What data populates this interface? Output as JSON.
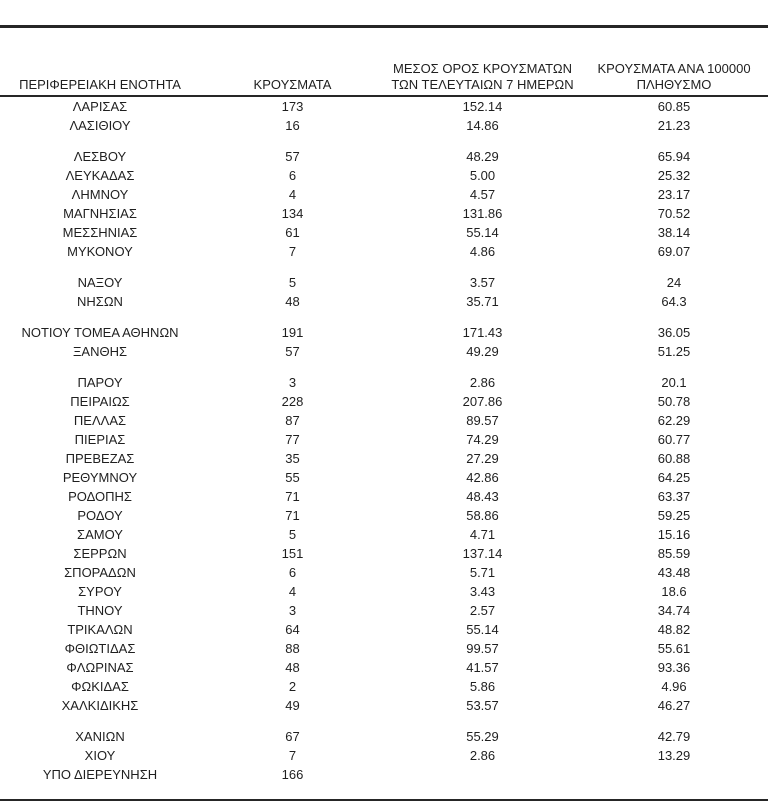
{
  "page": {
    "background": "#ffffff",
    "text_color": "#1f1f1f",
    "rule_color": "#262626"
  },
  "table": {
    "header": {
      "col1": "ΠΕΡΙΦΕΡΕΙΑΚΗ ΕΝΟΤΗΤΑ",
      "col2": "ΚΡΟΥΣΜΑΤΑ",
      "col3_line1": "ΜΕΣΟΣ ΟΡΟΣ ΚΡΟΥΣΜΑΤΩΝ",
      "col3_line2": "ΤΩΝ ΤΕΛΕΥΤΑΙΩΝ 7 ΗΜΕΡΩΝ",
      "col4_line1": "ΚΡΟΥΣΜΑΤΑ ΑΝΑ 100000",
      "col4_line2": "ΠΛΗΘΥΣΜΟ"
    },
    "rows": [
      {
        "name": "ΛΑΡΙΣΑΣ",
        "cases": "173",
        "avg7": "152.14",
        "per100k": "60.85"
      },
      {
        "name": "ΛΑΣΙΘΙΟΥ",
        "cases": "16",
        "avg7": "14.86",
        "per100k": "21.23"
      },
      {
        "spacer": true
      },
      {
        "name": "ΛΕΣΒΟΥ",
        "cases": "57",
        "avg7": "48.29",
        "per100k": "65.94"
      },
      {
        "name": "ΛΕΥΚΑΔΑΣ",
        "cases": "6",
        "avg7": "5.00",
        "per100k": "25.32"
      },
      {
        "name": "ΛΗΜΝΟΥ",
        "cases": "4",
        "avg7": "4.57",
        "per100k": "23.17"
      },
      {
        "name": "ΜΑΓΝΗΣΙΑΣ",
        "cases": "134",
        "avg7": "131.86",
        "per100k": "70.52"
      },
      {
        "name": "ΜΕΣΣΗΝΙΑΣ",
        "cases": "61",
        "avg7": "55.14",
        "per100k": "38.14"
      },
      {
        "name": "ΜΥΚΟΝΟΥ",
        "cases": "7",
        "avg7": "4.86",
        "per100k": "69.07"
      },
      {
        "spacer": true
      },
      {
        "name": "ΝΑΞΟΥ",
        "cases": "5",
        "avg7": "3.57",
        "per100k": "24"
      },
      {
        "name": "ΝΗΣΩΝ",
        "cases": "48",
        "avg7": "35.71",
        "per100k": "64.3"
      },
      {
        "spacer": true
      },
      {
        "name": "ΝΟΤΙΟΥ ΤΟΜΕΑ ΑΘΗΝΩΝ",
        "cases": "191",
        "avg7": "171.43",
        "per100k": "36.05"
      },
      {
        "name": "ΞΑΝΘΗΣ",
        "cases": "57",
        "avg7": "49.29",
        "per100k": "51.25"
      },
      {
        "spacer": true
      },
      {
        "name": "ΠΑΡΟΥ",
        "cases": "3",
        "avg7": "2.86",
        "per100k": "20.1"
      },
      {
        "name": "ΠΕΙΡΑΙΩΣ",
        "cases": "228",
        "avg7": "207.86",
        "per100k": "50.78"
      },
      {
        "name": "ΠΕΛΛΑΣ",
        "cases": "87",
        "avg7": "89.57",
        "per100k": "62.29"
      },
      {
        "name": "ΠΙΕΡΙΑΣ",
        "cases": "77",
        "avg7": "74.29",
        "per100k": "60.77"
      },
      {
        "name": "ΠΡΕΒΕΖΑΣ",
        "cases": "35",
        "avg7": "27.29",
        "per100k": "60.88"
      },
      {
        "name": "ΡΕΘΥΜΝΟΥ",
        "cases": "55",
        "avg7": "42.86",
        "per100k": "64.25"
      },
      {
        "name": "ΡΟΔΟΠΗΣ",
        "cases": "71",
        "avg7": "48.43",
        "per100k": "63.37"
      },
      {
        "name": "ΡΟΔΟΥ",
        "cases": "71",
        "avg7": "58.86",
        "per100k": "59.25"
      },
      {
        "name": "ΣΑΜΟΥ",
        "cases": "5",
        "avg7": "4.71",
        "per100k": "15.16"
      },
      {
        "name": "ΣΕΡΡΩΝ",
        "cases": "151",
        "avg7": "137.14",
        "per100k": "85.59"
      },
      {
        "name": "ΣΠΟΡΑΔΩΝ",
        "cases": "6",
        "avg7": "5.71",
        "per100k": "43.48"
      },
      {
        "name": "ΣΥΡΟΥ",
        "cases": "4",
        "avg7": "3.43",
        "per100k": "18.6"
      },
      {
        "name": "ΤΗΝΟΥ",
        "cases": "3",
        "avg7": "2.57",
        "per100k": "34.74"
      },
      {
        "name": "ΤΡΙΚΑΛΩΝ",
        "cases": "64",
        "avg7": "55.14",
        "per100k": "48.82"
      },
      {
        "name": "ΦΘΙΩΤΙΔΑΣ",
        "cases": "88",
        "avg7": "99.57",
        "per100k": "55.61"
      },
      {
        "name": "ΦΛΩΡΙΝΑΣ",
        "cases": "48",
        "avg7": "41.57",
        "per100k": "93.36"
      },
      {
        "name": "ΦΩΚΙΔΑΣ",
        "cases": "2",
        "avg7": "5.86",
        "per100k": "4.96"
      },
      {
        "name": "ΧΑΛΚΙΔΙΚΗΣ",
        "cases": "49",
        "avg7": "53.57",
        "per100k": "46.27"
      },
      {
        "spacer": true
      },
      {
        "name": "ΧΑΝΙΩΝ",
        "cases": "67",
        "avg7": "55.29",
        "per100k": "42.79"
      },
      {
        "name": "ΧΙΟΥ",
        "cases": "7",
        "avg7": "2.86",
        "per100k": "13.29"
      },
      {
        "name": "ΥΠΟ ΔΙΕΡΕΥΝΗΣΗ",
        "cases": "166",
        "avg7": "",
        "per100k": ""
      }
    ]
  },
  "chart_data": {
    "type": "table",
    "columns": [
      "ΠΕΡΙΦΕΡΕΙΑΚΗ ΕΝΟΤΗΤΑ",
      "ΚΡΟΥΣΜΑΤΑ",
      "ΜΕΣΟΣ ΟΡΟΣ ΚΡΟΥΣΜΑΤΩΝ ΤΩΝ ΤΕΛΕΥΤΑΙΩΝ 7 ΗΜΕΡΩΝ",
      "ΚΡΟΥΣΜΑΤΑ ΑΝΑ 100000 ΠΛΗΘΥΣΜΟ"
    ],
    "rows": [
      [
        "ΛΑΡΙΣΑΣ",
        173,
        152.14,
        60.85
      ],
      [
        "ΛΑΣΙΘΙΟΥ",
        16,
        14.86,
        21.23
      ],
      [
        "ΛΕΣΒΟΥ",
        57,
        48.29,
        65.94
      ],
      [
        "ΛΕΥΚΑΔΑΣ",
        6,
        5.0,
        25.32
      ],
      [
        "ΛΗΜΝΟΥ",
        4,
        4.57,
        23.17
      ],
      [
        "ΜΑΓΝΗΣΙΑΣ",
        134,
        131.86,
        70.52
      ],
      [
        "ΜΕΣΣΗΝΙΑΣ",
        61,
        55.14,
        38.14
      ],
      [
        "ΜΥΚΟΝΟΥ",
        7,
        4.86,
        69.07
      ],
      [
        "ΝΑΞΟΥ",
        5,
        3.57,
        24
      ],
      [
        "ΝΗΣΩΝ",
        48,
        35.71,
        64.3
      ],
      [
        "ΝΟΤΙΟΥ ΤΟΜΕΑ ΑΘΗΝΩΝ",
        191,
        171.43,
        36.05
      ],
      [
        "ΞΑΝΘΗΣ",
        57,
        49.29,
        51.25
      ],
      [
        "ΠΑΡΟΥ",
        3,
        2.86,
        20.1
      ],
      [
        "ΠΕΙΡΑΙΩΣ",
        228,
        207.86,
        50.78
      ],
      [
        "ΠΕΛΛΑΣ",
        87,
        89.57,
        62.29
      ],
      [
        "ΠΙΕΡΙΑΣ",
        77,
        74.29,
        60.77
      ],
      [
        "ΠΡΕΒΕΖΑΣ",
        35,
        27.29,
        60.88
      ],
      [
        "ΡΕΘΥΜΝΟΥ",
        55,
        42.86,
        64.25
      ],
      [
        "ΡΟΔΟΠΗΣ",
        71,
        48.43,
        63.37
      ],
      [
        "ΡΟΔΟΥ",
        71,
        58.86,
        59.25
      ],
      [
        "ΣΑΜΟΥ",
        5,
        4.71,
        15.16
      ],
      [
        "ΣΕΡΡΩΝ",
        151,
        137.14,
        85.59
      ],
      [
        "ΣΠΟΡΑΔΩΝ",
        6,
        5.71,
        43.48
      ],
      [
        "ΣΥΡΟΥ",
        4,
        3.43,
        18.6
      ],
      [
        "ΤΗΝΟΥ",
        3,
        2.57,
        34.74
      ],
      [
        "ΤΡΙΚΑΛΩΝ",
        64,
        55.14,
        48.82
      ],
      [
        "ΦΘΙΩΤΙΔΑΣ",
        88,
        99.57,
        55.61
      ],
      [
        "ΦΛΩΡΙΝΑΣ",
        48,
        41.57,
        93.36
      ],
      [
        "ΦΩΚΙΔΑΣ",
        2,
        5.86,
        4.96
      ],
      [
        "ΧΑΛΚΙΔΙΚΗΣ",
        49,
        53.57,
        46.27
      ],
      [
        "ΧΑΝΙΩΝ",
        67,
        55.29,
        42.79
      ],
      [
        "ΧΙΟΥ",
        7,
        2.86,
        13.29
      ],
      [
        "ΥΠΟ ΔΙΕΡΕΥΝΗΣΗ",
        166,
        null,
        null
      ]
    ]
  }
}
